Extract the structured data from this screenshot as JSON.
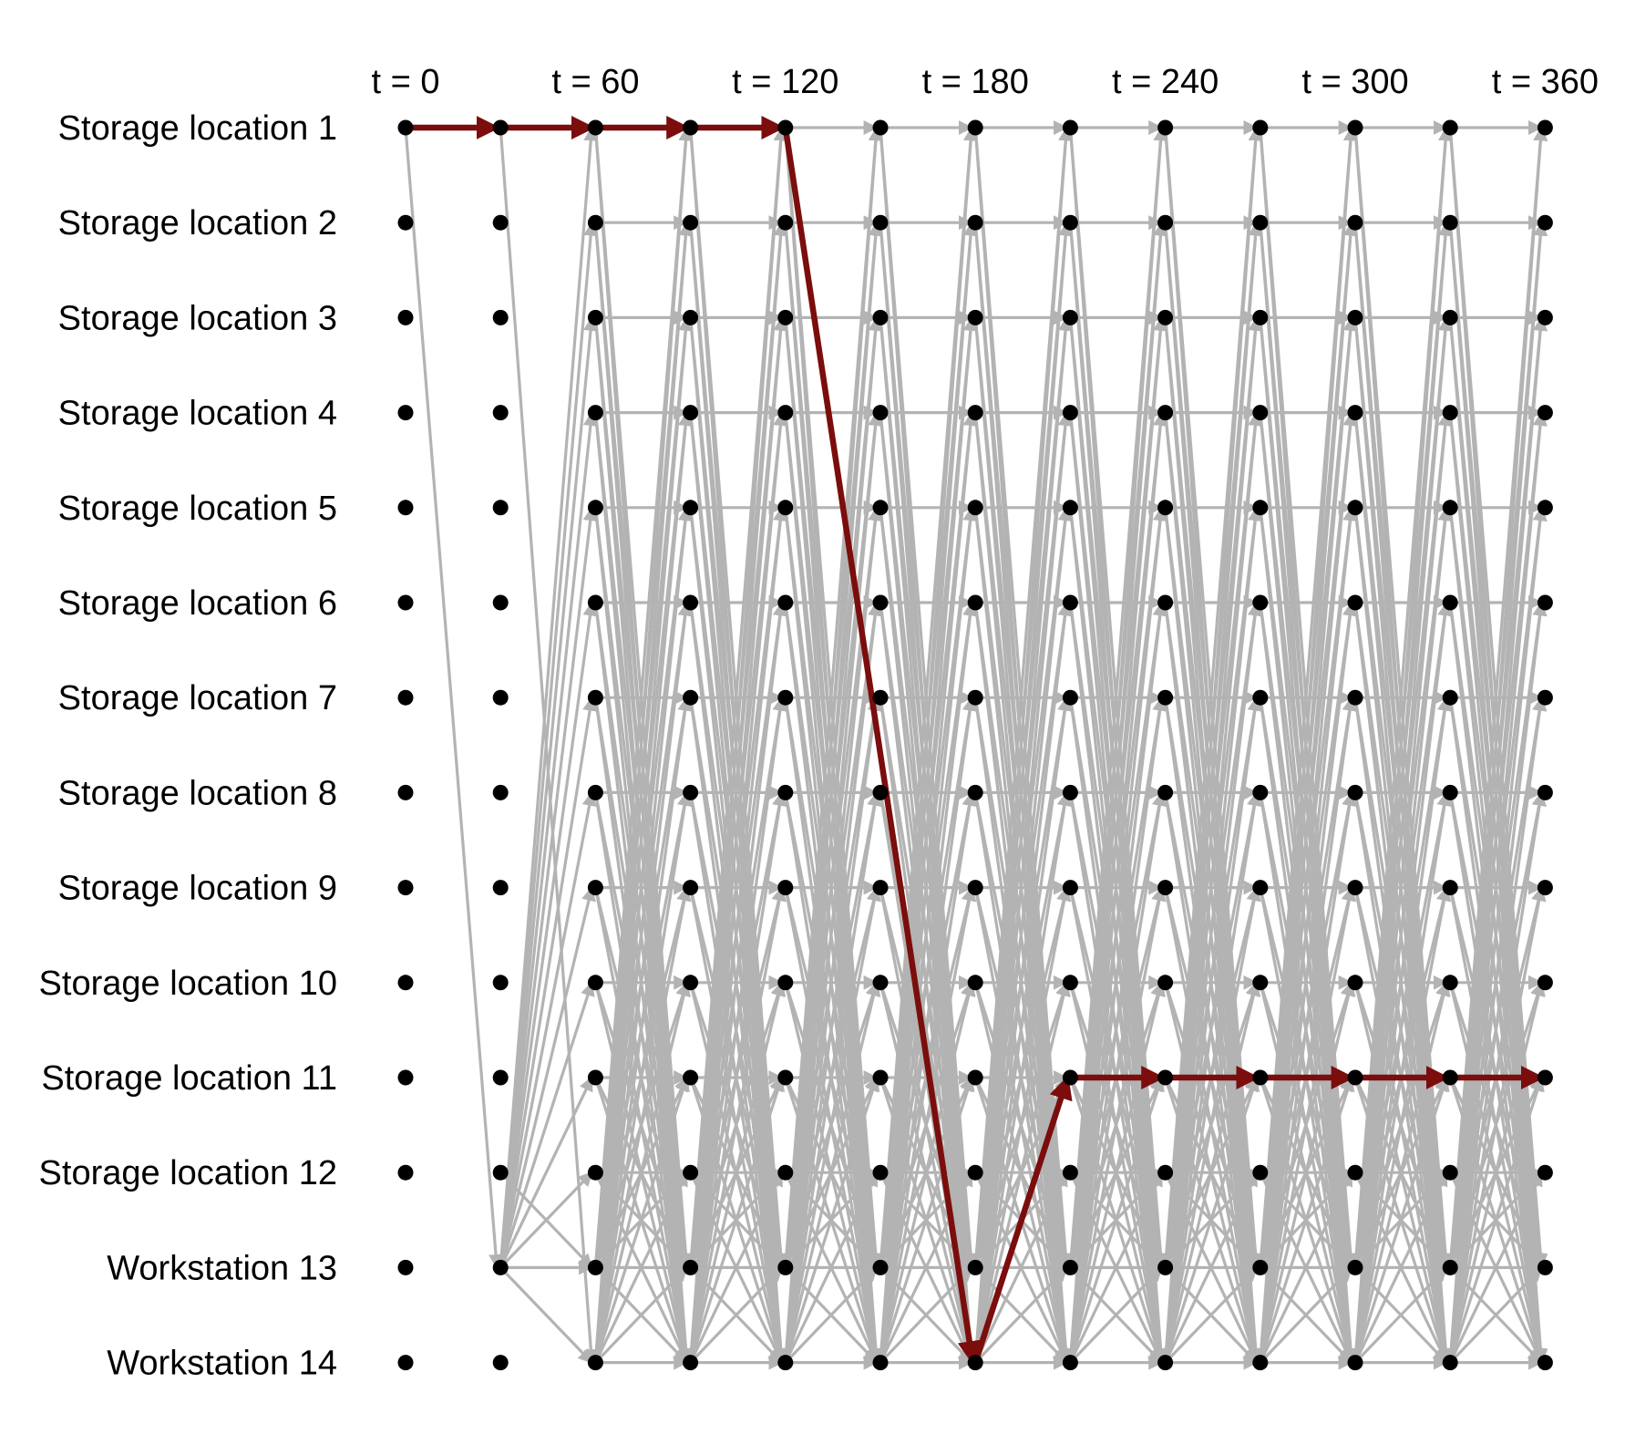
{
  "rows": [
    "Storage location 1",
    "Storage location 2",
    "Storage location 3",
    "Storage location 4",
    "Storage location 5",
    "Storage location 6",
    "Storage location 7",
    "Storage location 8",
    "Storage location 9",
    "Storage location 10",
    "Storage location 11",
    "Storage location 12",
    "Workstation 13",
    "Workstation 14"
  ],
  "time_steps": [
    0,
    30,
    60,
    90,
    120,
    150,
    180,
    210,
    240,
    270,
    300,
    330,
    360
  ],
  "time_labels": [
    {
      "step": 0,
      "text": "t = 0"
    },
    {
      "step": 2,
      "text": "t = 60"
    },
    {
      "step": 4,
      "text": "t = 120"
    },
    {
      "step": 6,
      "text": "t = 180"
    },
    {
      "step": 8,
      "text": "t = 240"
    },
    {
      "step": 10,
      "text": "t = 300"
    },
    {
      "step": 12,
      "text": "t = 360"
    }
  ],
  "highlighted_path": [
    {
      "step": 0,
      "row": 0
    },
    {
      "step": 1,
      "row": 0
    },
    {
      "step": 2,
      "row": 0
    },
    {
      "step": 3,
      "row": 0
    },
    {
      "step": 4,
      "row": 0
    },
    {
      "step": 6,
      "row": 13
    },
    {
      "step": 7,
      "row": 10
    },
    {
      "step": 8,
      "row": 10
    },
    {
      "step": 9,
      "row": 10
    },
    {
      "step": 10,
      "row": 10
    },
    {
      "step": 11,
      "row": 10
    },
    {
      "step": 12,
      "row": 10
    }
  ],
  "colors": {
    "node": "#000000",
    "edge": "#b3b3b3",
    "path": "#7b0d0d"
  }
}
